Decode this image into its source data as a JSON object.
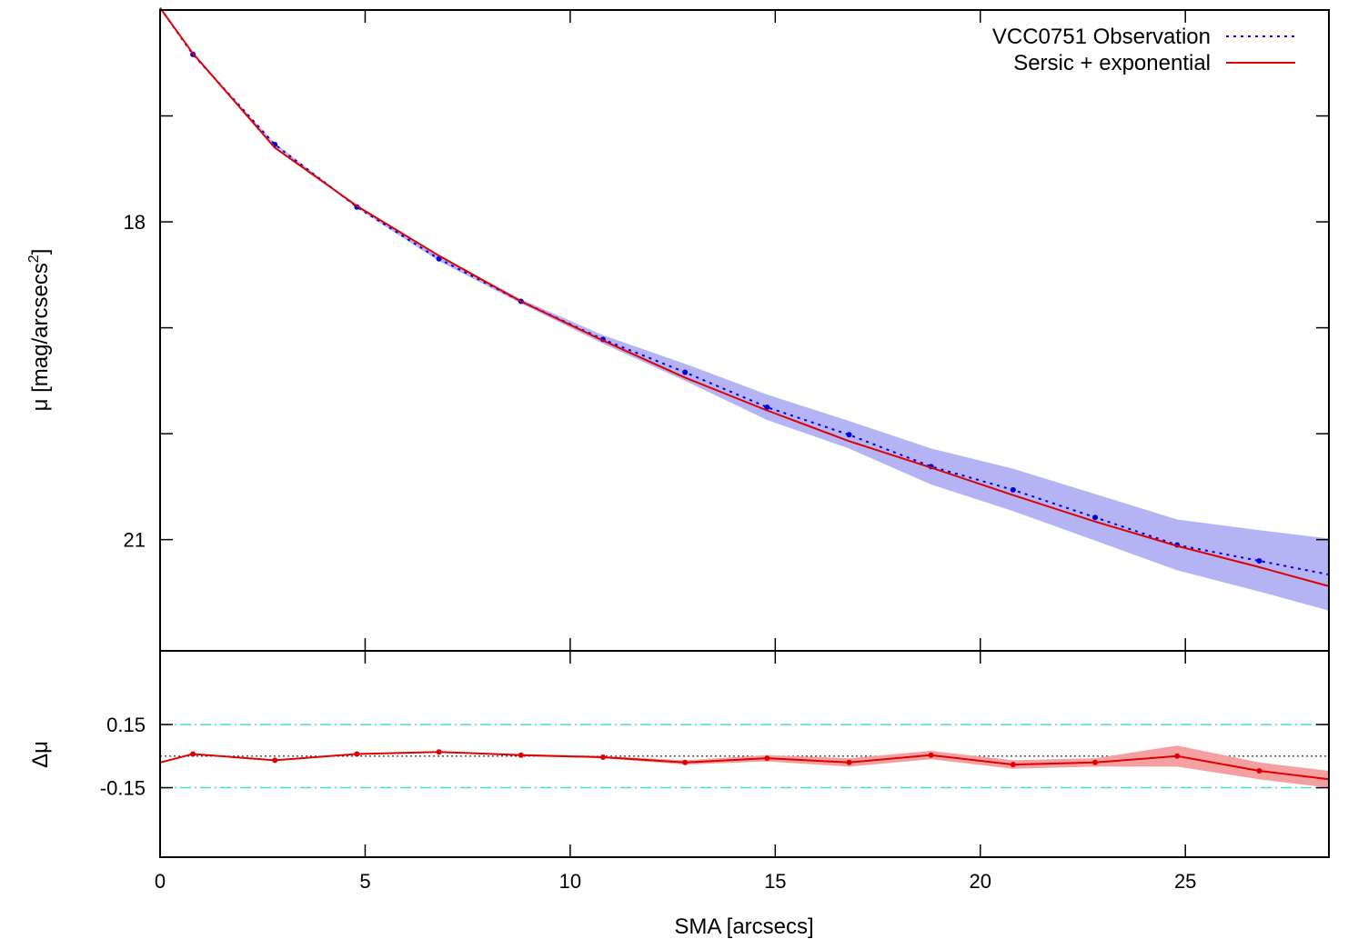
{
  "chart_data": [
    {
      "type": "line",
      "panel": "profile",
      "ylabel": "μ [mag/arcsecs²]",
      "ylabel_main": "μ [mag/arcsecs",
      "ylabel_sup": "2",
      "ylabel_close": "]",
      "xlim": [
        0,
        28.5
      ],
      "ylim": [
        16.0,
        22.05
      ],
      "y_reversed": true,
      "yticks_major": [
        18,
        21
      ],
      "yticks_minor": [
        17,
        19,
        20
      ],
      "ytick_labels": [
        "18",
        "21"
      ],
      "legend_position": "top-right",
      "series": [
        {
          "name": "VCC0751 Observation",
          "style": "dotted",
          "color": "#0000e0",
          "x": [
            0.0,
            0.8,
            2.8,
            4.8,
            6.8,
            8.8,
            10.8,
            12.8,
            14.8,
            16.8,
            18.8,
            20.8,
            22.8,
            24.8,
            26.8,
            28.5
          ],
          "y": [
            15.98,
            16.42,
            17.27,
            17.86,
            18.35,
            18.75,
            19.11,
            19.42,
            19.75,
            20.01,
            20.31,
            20.53,
            20.79,
            21.05,
            21.2,
            21.33
          ],
          "band_lower": [
            15.98,
            16.42,
            17.26,
            17.85,
            18.33,
            18.73,
            19.07,
            19.34,
            19.63,
            19.88,
            20.14,
            20.33,
            20.57,
            20.81,
            20.91,
            20.99
          ],
          "band_upper": [
            15.98,
            16.42,
            17.28,
            17.87,
            18.37,
            18.77,
            19.15,
            19.5,
            19.87,
            20.14,
            20.48,
            20.73,
            21.01,
            21.29,
            21.49,
            21.67
          ]
        },
        {
          "name": "Sersic + exponential",
          "style": "solid",
          "color": "#e00000",
          "x": [
            0.0,
            0.8,
            2.8,
            4.8,
            6.8,
            8.8,
            10.8,
            12.8,
            14.8,
            16.8,
            18.8,
            20.8,
            22.8,
            24.8,
            26.8,
            28.5
          ],
          "y": [
            15.98,
            16.41,
            17.3,
            17.85,
            18.32,
            18.75,
            19.12,
            19.47,
            19.78,
            20.07,
            20.32,
            20.58,
            20.83,
            21.06,
            21.26,
            21.44
          ]
        }
      ]
    },
    {
      "type": "line",
      "panel": "residual",
      "xlabel": "SMA [arcsecs]",
      "ylabel": "Δμ",
      "xlim": [
        0,
        28.5
      ],
      "ylim": [
        -0.48,
        0.5
      ],
      "xticks": [
        0,
        5,
        10,
        15,
        20,
        25
      ],
      "xtick_labels": [
        "0",
        "5",
        "10",
        "15",
        "20",
        "25"
      ],
      "yticks": [
        0.15,
        -0.15
      ],
      "ytick_labels": [
        "0.15",
        "-0.15"
      ],
      "reference_lines": [
        {
          "y": 0.15,
          "style": "dash-dot",
          "color": "#40e0d0"
        },
        {
          "y": -0.15,
          "style": "dash-dot",
          "color": "#40e0d0"
        },
        {
          "y": 0.0,
          "style": "dotted",
          "color": "#000000"
        }
      ],
      "series": [
        {
          "name": "",
          "style": "solid",
          "color": "#e00000",
          "band_color": "#f4a0a0",
          "x": [
            0.0,
            0.8,
            2.8,
            4.8,
            6.8,
            8.8,
            10.8,
            12.8,
            14.8,
            16.8,
            18.8,
            20.8,
            22.8,
            24.8,
            26.8,
            28.5
          ],
          "y": [
            -0.03,
            0.01,
            -0.02,
            0.01,
            0.02,
            0.005,
            -0.005,
            -0.03,
            -0.01,
            -0.03,
            0.005,
            -0.04,
            -0.03,
            0.0,
            -0.07,
            -0.11
          ],
          "band_lower": [
            -0.03,
            0.01,
            -0.02,
            0.01,
            0.02,
            0.0,
            -0.01,
            -0.04,
            -0.025,
            -0.05,
            -0.015,
            -0.06,
            -0.05,
            -0.05,
            -0.11,
            -0.15
          ],
          "band_upper": [
            -0.03,
            0.01,
            -0.02,
            0.01,
            0.02,
            0.01,
            0.0,
            -0.02,
            0.005,
            -0.01,
            0.025,
            -0.02,
            -0.01,
            0.05,
            -0.03,
            -0.07
          ]
        }
      ]
    }
  ]
}
